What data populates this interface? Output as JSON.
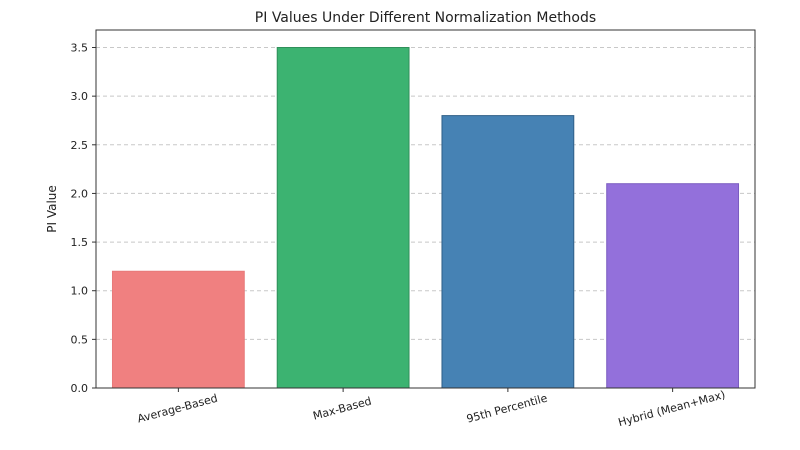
{
  "chart_data": {
    "type": "bar",
    "title": "PI Values Under Different Normalization Methods",
    "xlabel": "",
    "ylabel": "PI Value",
    "categories": [
      "Average-Based",
      "Max-Based",
      "95th Percentile",
      "Hybrid (Mean+Max)"
    ],
    "values": [
      1.2,
      3.5,
      2.8,
      2.1
    ],
    "colors": [
      "#f08080",
      "#3cb371",
      "#4682b4",
      "#9370db"
    ],
    "edge_colors": [
      "#e77a7a",
      "#2f8f5a",
      "#2f5f88",
      "#7a5cc0"
    ],
    "ylim": [
      0,
      3.68
    ],
    "yticks": [
      0.0,
      0.5,
      1.0,
      1.5,
      2.0,
      2.5,
      3.0,
      3.5
    ],
    "ytick_labels": [
      "0.0",
      "0.5",
      "1.0",
      "1.5",
      "2.0",
      "2.5",
      "3.0",
      "3.5"
    ],
    "grid": "y-dashed",
    "legend": "none",
    "xtick_rotation": "slanted"
  }
}
